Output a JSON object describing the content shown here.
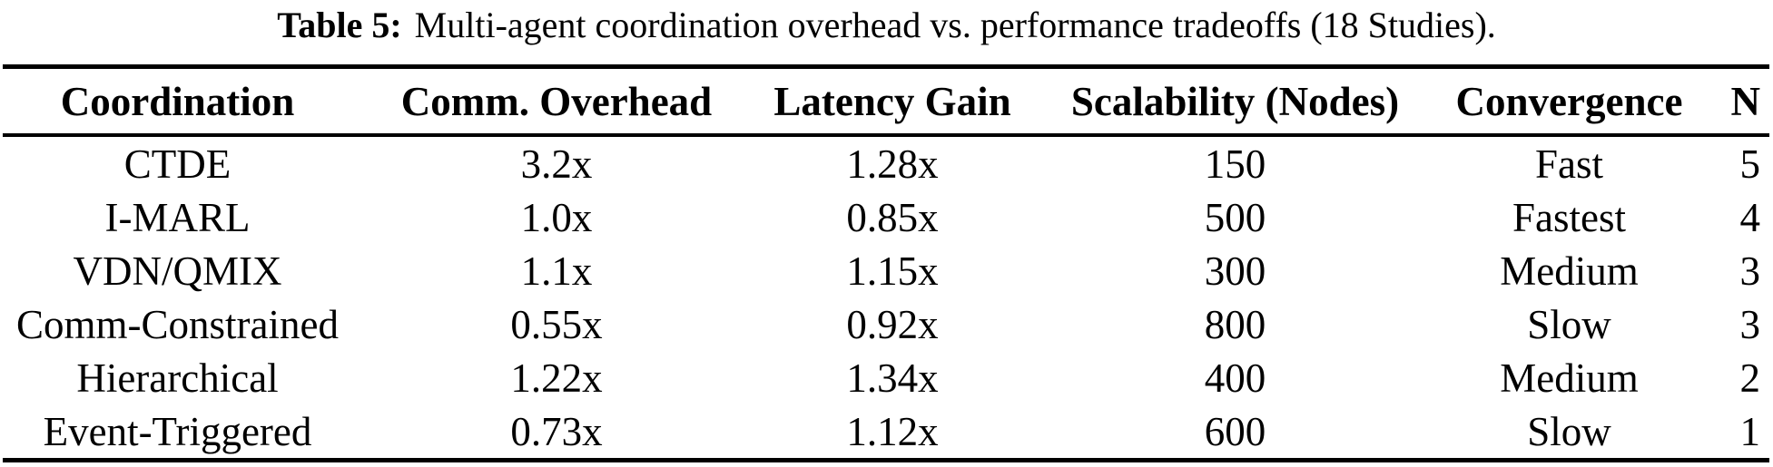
{
  "caption": {
    "label": "Table 5:",
    "text": "Multi-agent coordination overhead vs. performance tradeoffs (18 Studies)."
  },
  "table": {
    "columns": [
      "Coordination",
      "Comm. Overhead",
      "Latency Gain",
      "Scalability (Nodes)",
      "Convergence",
      "N"
    ],
    "rows": [
      [
        "CTDE",
        "3.2x",
        "1.28x",
        "150",
        "Fast",
        "5"
      ],
      [
        "I-MARL",
        "1.0x",
        "0.85x",
        "500",
        "Fastest",
        "4"
      ],
      [
        "VDN/QMIX",
        "1.1x",
        "1.15x",
        "300",
        "Medium",
        "3"
      ],
      [
        "Comm-Constrained",
        "0.55x",
        "0.92x",
        "800",
        "Slow",
        "3"
      ],
      [
        "Hierarchical",
        "1.22x",
        "1.34x",
        "400",
        "Medium",
        "2"
      ],
      [
        "Event-Triggered",
        "0.73x",
        "1.12x",
        "600",
        "Slow",
        "1"
      ]
    ]
  },
  "colors": {
    "text": "#000000",
    "background": "#ffffff",
    "rule": "#000000"
  }
}
